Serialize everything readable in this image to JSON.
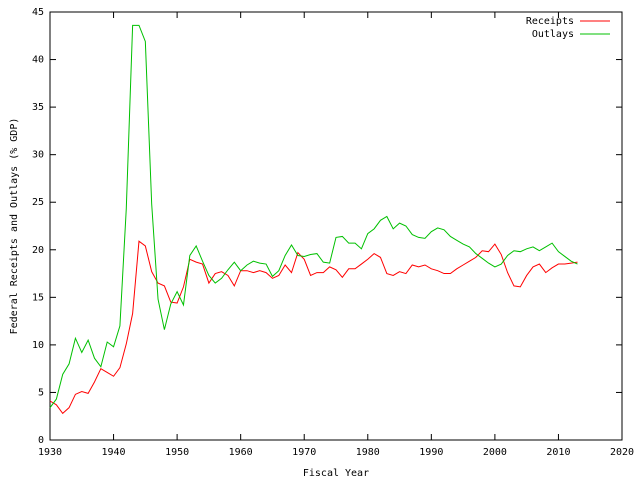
{
  "chart_data": {
    "type": "line",
    "xlabel": "Fiscal Year",
    "ylabel": "Federal Receipts and Outlays (% GDP)",
    "x": [
      1930,
      1931,
      1932,
      1933,
      1934,
      1935,
      1936,
      1937,
      1938,
      1939,
      1940,
      1941,
      1942,
      1943,
      1944,
      1945,
      1946,
      1947,
      1948,
      1949,
      1950,
      1951,
      1952,
      1953,
      1954,
      1955,
      1956,
      1957,
      1958,
      1959,
      1960,
      1961,
      1962,
      1963,
      1964,
      1965,
      1966,
      1967,
      1968,
      1969,
      1970,
      1971,
      1972,
      1973,
      1974,
      1975,
      1976,
      1977,
      1978,
      1979,
      1980,
      1981,
      1982,
      1983,
      1984,
      1985,
      1986,
      1987,
      1988,
      1989,
      1990,
      1991,
      1992,
      1993,
      1994,
      1995,
      1996,
      1997,
      1998,
      1999,
      2000,
      2001,
      2002,
      2003,
      2004,
      2005,
      2006,
      2007,
      2008,
      2009,
      2010,
      2011,
      2012,
      2013
    ],
    "series": [
      {
        "name": "Receipts",
        "color": "#ff0000",
        "values": [
          4.1,
          3.7,
          2.8,
          3.4,
          4.8,
          5.1,
          4.9,
          6.1,
          7.5,
          7.1,
          6.7,
          7.6,
          10.1,
          13.3,
          20.9,
          20.4,
          17.7,
          16.5,
          16.2,
          14.5,
          14.4,
          16.1,
          19.0,
          18.7,
          18.5,
          16.5,
          17.5,
          17.7,
          17.3,
          16.2,
          17.8,
          17.8,
          17.6,
          17.8,
          17.6,
          17.0,
          17.3,
          18.4,
          17.6,
          19.7,
          19.0,
          17.3,
          17.6,
          17.6,
          18.2,
          17.9,
          17.1,
          18.0,
          18.0,
          18.5,
          19.0,
          19.6,
          19.2,
          17.5,
          17.3,
          17.7,
          17.5,
          18.4,
          18.2,
          18.4,
          18.0,
          17.8,
          17.5,
          17.5,
          18.0,
          18.4,
          18.8,
          19.2,
          19.9,
          19.8,
          20.6,
          19.5,
          17.6,
          16.2,
          16.1,
          17.3,
          18.2,
          18.5,
          17.6,
          18.1,
          18.5,
          18.5,
          18.6,
          18.7
        ]
      },
      {
        "name": "Outlays",
        "color": "#00c000",
        "values": [
          3.4,
          4.3,
          6.9,
          8.0,
          10.7,
          9.2,
          10.5,
          8.6,
          7.7,
          10.3,
          9.8,
          12.0,
          24.3,
          43.6,
          43.6,
          41.9,
          24.8,
          14.8,
          11.6,
          14.3,
          15.6,
          14.2,
          19.4,
          20.4,
          18.8,
          17.3,
          16.5,
          17.0,
          17.9,
          18.7,
          17.8,
          18.4,
          18.8,
          18.6,
          18.5,
          17.2,
          17.8,
          19.4,
          20.5,
          19.4,
          19.3,
          19.5,
          19.6,
          18.7,
          18.6,
          21.3,
          21.4,
          20.7,
          20.7,
          20.1,
          21.7,
          22.2,
          23.1,
          23.5,
          22.2,
          22.8,
          22.5,
          21.6,
          21.3,
          21.2,
          21.9,
          22.3,
          22.1,
          21.4,
          21.0,
          20.6,
          20.3,
          19.6,
          19.1,
          18.6,
          18.2,
          18.5,
          19.4,
          19.9,
          19.8,
          20.1,
          20.3,
          19.9,
          20.3,
          20.7,
          19.8,
          19.3,
          18.8,
          18.5
        ]
      }
    ],
    "xlim": [
      1930,
      2020
    ],
    "xticks": [
      1930,
      1940,
      1950,
      1960,
      1970,
      1980,
      1990,
      2000,
      2010,
      2020
    ],
    "ylim": [
      0,
      45
    ],
    "yticks": [
      0,
      5,
      10,
      15,
      20,
      25,
      30,
      35,
      40,
      45
    ],
    "legend": "upper right",
    "grid": false
  }
}
